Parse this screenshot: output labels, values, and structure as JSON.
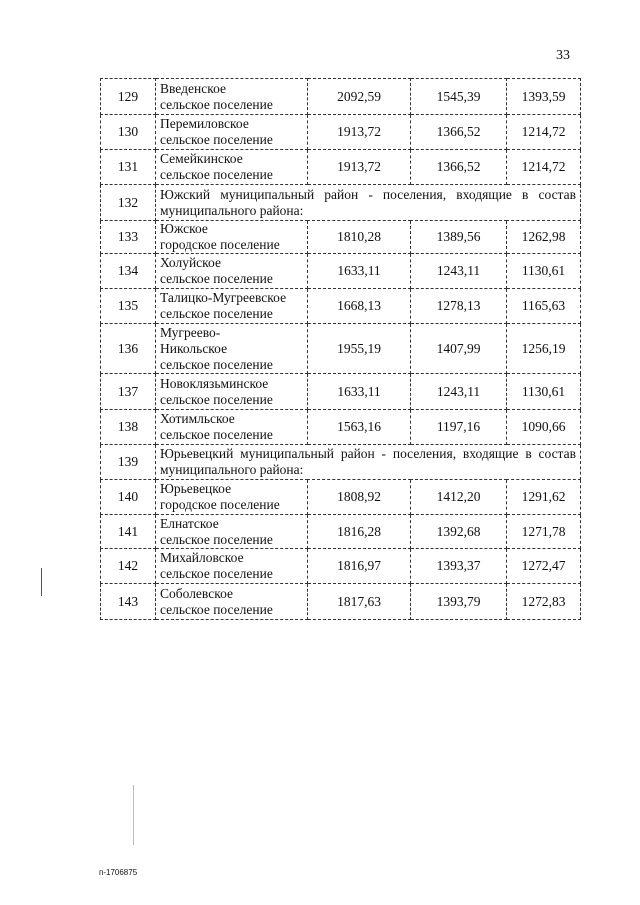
{
  "page_number": "33",
  "rows": [
    {
      "n": "129",
      "name": [
        "Введенское",
        "сельское поселение"
      ],
      "v": [
        "2092,59",
        "1545,39",
        "1393,59"
      ]
    },
    {
      "n": "130",
      "name": [
        "Перемиловское",
        "сельское поселение"
      ],
      "v": [
        "1913,72",
        "1366,52",
        "1214,72"
      ]
    },
    {
      "n": "131",
      "name": [
        "Семейкинское",
        "сельское поселение"
      ],
      "v": [
        "1913,72",
        "1366,52",
        "1214,72"
      ]
    },
    {
      "n": "132",
      "header": "Южский муниципальный район - поселения, входящие в состав муниципального района:"
    },
    {
      "n": "133",
      "name": [
        "Южское",
        "городское поселение"
      ],
      "v": [
        "1810,28",
        "1389,56",
        "1262,98"
      ]
    },
    {
      "n": "134",
      "name": [
        "Холуйское",
        "сельское поселение"
      ],
      "v": [
        "1633,11",
        "1243,11",
        "1130,61"
      ]
    },
    {
      "n": "135",
      "name": [
        "Талицко-Мугреевское",
        "сельское поселение"
      ],
      "v": [
        "1668,13",
        "1278,13",
        "1165,63"
      ]
    },
    {
      "n": "136",
      "name": [
        "Мугреево-",
        "Никольское",
        "сельское поселение"
      ],
      "v": [
        "1955,19",
        "1407,99",
        "1256,19"
      ]
    },
    {
      "n": "137",
      "name": [
        "Новоклязьминское",
        "сельское поселение"
      ],
      "v": [
        "1633,11",
        "1243,11",
        "1130,61"
      ]
    },
    {
      "n": "138",
      "name": [
        "Хотимльское",
        "сельское поселение"
      ],
      "v": [
        "1563,16",
        "1197,16",
        "1090,66"
      ]
    },
    {
      "n": "139",
      "header": "Юрьевецкий муниципальный район - поселения, входящие в состав муниципального района:"
    },
    {
      "n": "140",
      "name": [
        "Юрьевецкое",
        "городское поселение"
      ],
      "v": [
        "1808,92",
        "1412,20",
        "1291,62"
      ]
    },
    {
      "n": "141",
      "name": [
        "Елнатское",
        "сельское поселение"
      ],
      "v": [
        "1816,28",
        "1392,68",
        "1271,78"
      ]
    },
    {
      "n": "142",
      "name": [
        "Михайловское",
        "сельское поселение"
      ],
      "v": [
        "1816,97",
        "1393,37",
        "1272,47"
      ]
    },
    {
      "n": "143",
      "name": [
        "Соболевское",
        "сельское поселение"
      ],
      "v": [
        "1817,63",
        "1393,79",
        "1272,83"
      ]
    }
  ],
  "footer_code": "п-1706875"
}
